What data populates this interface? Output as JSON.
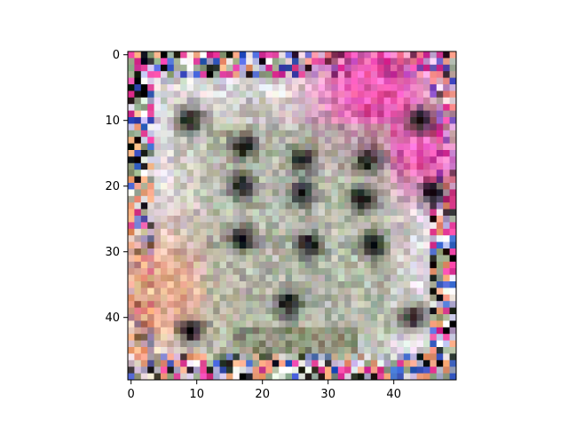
{
  "figure": {
    "background": "#ffffff",
    "image_semantic": "pixelated-low-resolution-photo",
    "image_colors": {
      "base": "#c9c6c1",
      "pink": "#e23b9a",
      "magenta": "#ff4fc0",
      "dark": "#141414",
      "blue": "#3c5ec9",
      "orange": "#f0a07a",
      "green": "#97a88a",
      "olive": "#6a6d4a",
      "lavender": "#b7b0d8",
      "white": "#f7f7f7"
    }
  },
  "chart_data": {
    "type": "heatmap",
    "rows": 50,
    "cols": 50,
    "xlim": [
      -0.5,
      49.5
    ],
    "ylim": [
      49.5,
      -0.5
    ],
    "xticks": [
      0,
      10,
      20,
      30,
      40
    ],
    "yticks": [
      0,
      10,
      20,
      30,
      40
    ],
    "xtick_labels": [
      "0",
      "10",
      "20",
      "30",
      "40"
    ],
    "ytick_labels": [
      "0",
      "10",
      "20",
      "30",
      "40"
    ],
    "grid": false,
    "title": "",
    "xlabel": "",
    "ylabel": ""
  }
}
